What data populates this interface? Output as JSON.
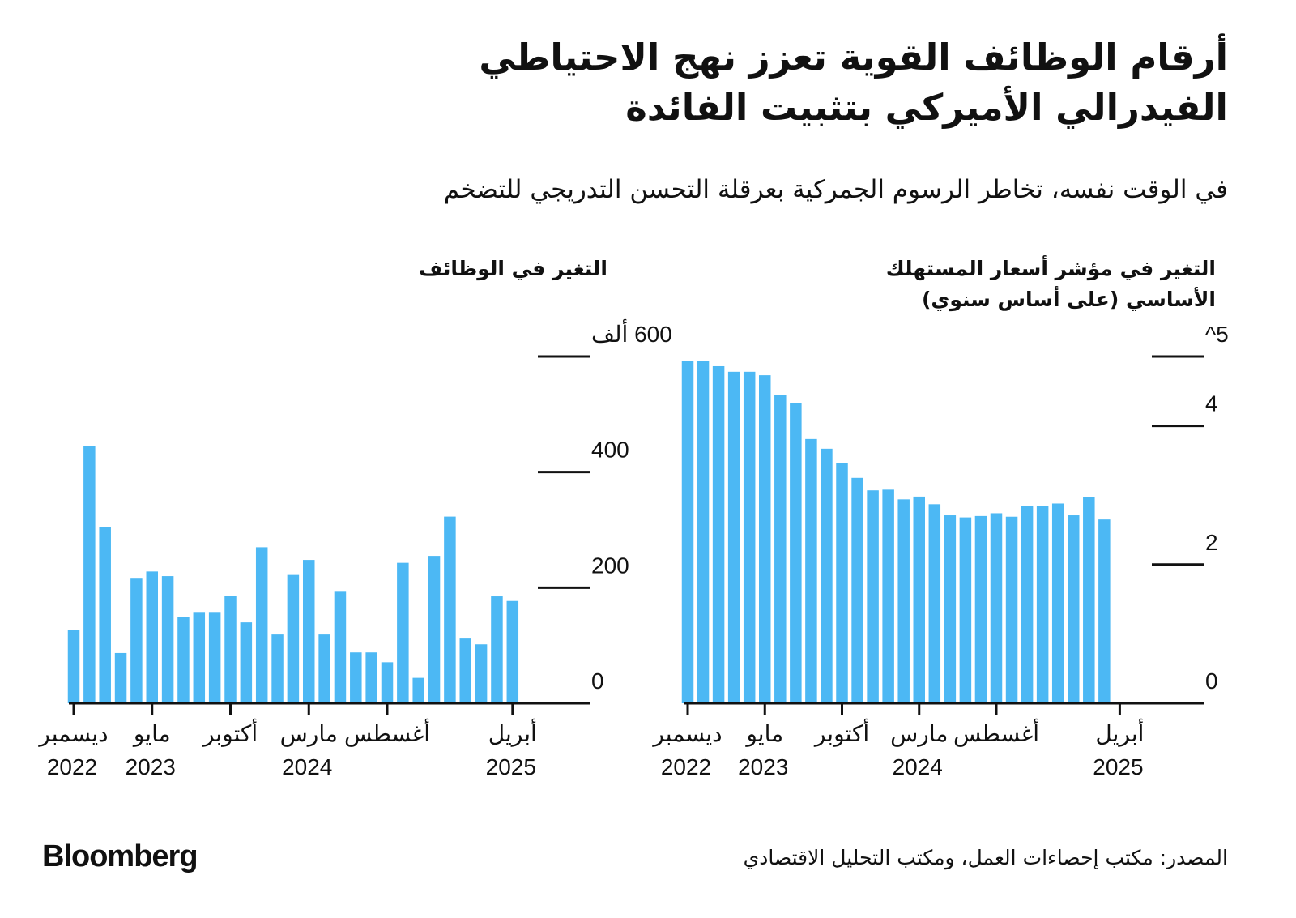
{
  "header": {
    "title_line1": "أرقام الوظائف القوية تعزز نهج الاحتياطي",
    "title_line2": "الفيدرالي الأميركي بتثبيت الفائدة",
    "subtitle": "في الوقت نفسه، تخاطر الرسوم الجمركية بعرقلة التحسن التدريجي للتضخم"
  },
  "footer": {
    "source": "المصدر: مكتب إحصاءات العمل، ومكتب التحليل الاقتصادي",
    "logo": "Bloomberg"
  },
  "colors": {
    "bar": "#4cb8f4",
    "axis": "#111111"
  },
  "chart_data": [
    {
      "type": "bar",
      "title_line1": "التغير في مؤشر أسعار المستهلك",
      "title_line2": "الأساسي (على أساس سنوي)",
      "ylim": [
        0,
        5
      ],
      "yticks": [
        {
          "value": 5,
          "label": "5^"
        },
        {
          "value": 4,
          "label": "4"
        },
        {
          "value": 2,
          "label": "2"
        },
        {
          "value": 0,
          "label": "0"
        }
      ],
      "xticks": [
        {
          "index": 0,
          "month": "ديسمبر",
          "year": "2022"
        },
        {
          "index": 5,
          "month": "مايو",
          "year": "2023"
        },
        {
          "index": 10,
          "month": "أكتوبر",
          "year": ""
        },
        {
          "index": 15,
          "month": "مارس",
          "year": "2024"
        },
        {
          "index": 20,
          "month": "أغسطس",
          "year": ""
        },
        {
          "index": 28,
          "month": "أبريل",
          "year": "2025"
        }
      ],
      "n_slots": 29,
      "values": [
        4.94,
        4.93,
        4.86,
        4.78,
        4.78,
        4.73,
        4.44,
        4.33,
        3.81,
        3.67,
        3.46,
        3.25,
        3.07,
        3.08,
        2.94,
        2.98,
        2.87,
        2.71,
        2.68,
        2.7,
        2.74,
        2.69,
        2.84,
        2.85,
        2.88,
        2.71,
        2.97,
        2.65
      ]
    },
    {
      "type": "bar",
      "title": "التغير في الوظائف",
      "ylim": [
        0,
        600
      ],
      "yticks": [
        {
          "value": 600,
          "label": "600 ألف"
        },
        {
          "value": 400,
          "label": "400"
        },
        {
          "value": 200,
          "label": "200"
        },
        {
          "value": 0,
          "label": "0"
        }
      ],
      "xticks": [
        {
          "index": 0,
          "month": "ديسمبر",
          "year": "2022"
        },
        {
          "index": 5,
          "month": "مايو",
          "year": "2023"
        },
        {
          "index": 10,
          "month": "أكتوبر",
          "year": ""
        },
        {
          "index": 15,
          "month": "مارس",
          "year": "2024"
        },
        {
          "index": 20,
          "month": "أغسطس",
          "year": ""
        },
        {
          "index": 28,
          "month": "أبريل",
          "year": "2025"
        }
      ],
      "n_slots": 33,
      "values": [
        127,
        445,
        305,
        87,
        217,
        228,
        220,
        149,
        158,
        158,
        186,
        140,
        270,
        119,
        222,
        248,
        119,
        193,
        88,
        88,
        71,
        243,
        44,
        255,
        323,
        112,
        102,
        185,
        177
      ]
    }
  ]
}
